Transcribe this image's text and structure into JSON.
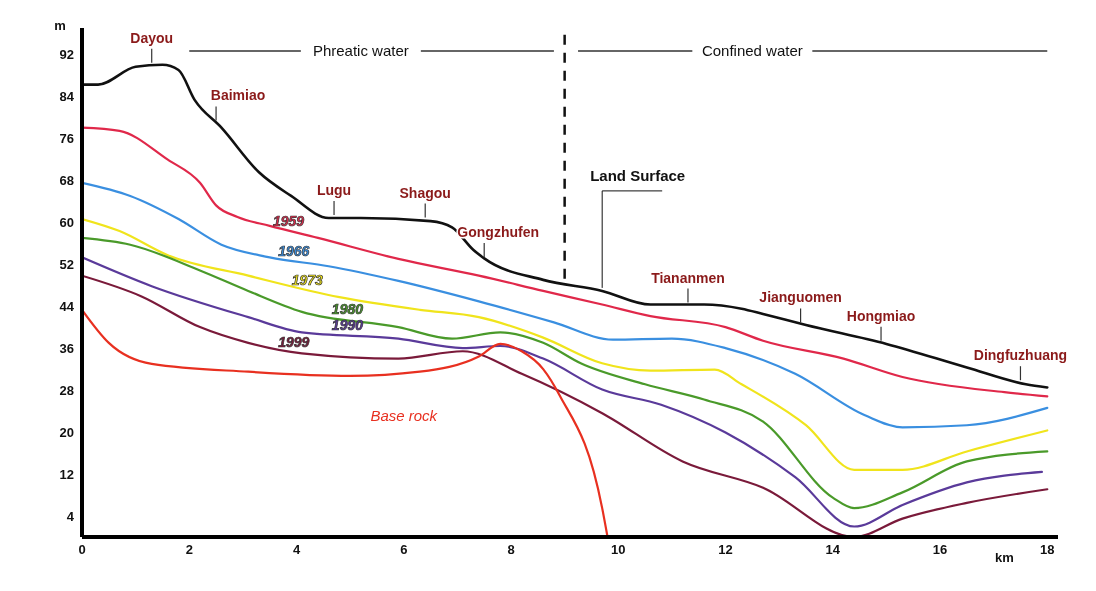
{
  "chart_data": {
    "type": "line",
    "xlabel": "km",
    "ylabel": "m",
    "xlim": [
      0,
      18.2
    ],
    "ylim": [
      0,
      97
    ],
    "xticks": [
      0,
      2,
      4,
      6,
      8,
      10,
      12,
      14,
      16,
      18
    ],
    "yticks": [
      4,
      12,
      20,
      28,
      36,
      44,
      52,
      60,
      68,
      76,
      84,
      92
    ],
    "marker": "none",
    "line_style": "solid",
    "series": [
      {
        "name": "Land Surface",
        "color": "#111111",
        "x": [
          0,
          0.3,
          1,
          1.5,
          1.8,
          2.1,
          2.6,
          3.3,
          3.9,
          4.6,
          5.2,
          6.5,
          6.9,
          7.3,
          7.5,
          8.6,
          9.7,
          10.6,
          11.6,
          12.3,
          12.7,
          13.5,
          15,
          16.5,
          17.6,
          18
        ],
        "values": [
          86.2,
          86.2,
          89.6,
          90,
          89,
          83.3,
          78,
          69.5,
          65,
          60.8,
          60.8,
          60.2,
          59,
          54.7,
          53.1,
          49,
          46.9,
          44.3,
          44.3,
          43.5,
          42.5,
          40.4,
          36.8,
          32.3,
          29.1,
          28.5
        ]
      },
      {
        "name": "1959",
        "color": "#e0284a",
        "x": [
          0,
          0.7,
          1.6,
          2.2,
          2.5,
          2.9,
          3.5,
          4.4,
          5.9,
          7.4,
          8.6,
          9.7,
          10.6,
          12,
          12.7,
          14.2,
          15.3,
          17.2,
          18
        ],
        "values": [
          78,
          77.4,
          71.9,
          67.5,
          63.2,
          61,
          59.3,
          57,
          53,
          49.8,
          46.9,
          44.3,
          42.1,
          40,
          37.4,
          34,
          30.5,
          27.6,
          26.8
        ]
      },
      {
        "name": "1966",
        "color": "#3a8fe0",
        "x": [
          0,
          0.9,
          1.8,
          2.6,
          3.5,
          4.6,
          5.9,
          7.4,
          8.8,
          9.9,
          11,
          12,
          13.3,
          14.6,
          15.3,
          16.5,
          18
        ],
        "values": [
          67.5,
          65,
          60.6,
          55.7,
          53.3,
          51.6,
          48.8,
          44.9,
          40.9,
          37.6,
          37.8,
          36,
          31.1,
          23.2,
          20.9,
          21.3,
          24.6
        ]
      },
      {
        "name": "1973",
        "color": "#f0e41c",
        "x": [
          0,
          0.7,
          1.6,
          3.1,
          4.8,
          6.3,
          7.4,
          8.6,
          9.7,
          10.6,
          11.8,
          12.3,
          13.5,
          14.4,
          15.3,
          16.5,
          18
        ],
        "values": [
          60.6,
          58.3,
          53.7,
          49.8,
          45.7,
          43.3,
          41.9,
          38,
          33.1,
          31.7,
          31.9,
          29.1,
          21.3,
          12.8,
          12.8,
          16.3,
          20.3
        ]
      },
      {
        "name": "1980",
        "color": "#4a9a2a",
        "x": [
          0,
          0.9,
          2.2,
          3.1,
          4.1,
          5.9,
          6.9,
          7.8,
          8.6,
          9.3,
          10.5,
          11.6,
          12.7,
          14,
          14.4,
          15.3,
          16.5,
          18
        ],
        "values": [
          57,
          55.7,
          50.8,
          46.9,
          42.9,
          40,
          37.8,
          39,
          37,
          33.1,
          29.1,
          26.2,
          22,
          7.5,
          5.5,
          8.5,
          14.4,
          16.3
        ]
      },
      {
        "name": "1990",
        "color": "#5a3a9a",
        "x": [
          0,
          1.3,
          3.1,
          4.1,
          5.9,
          7.1,
          7.8,
          8.6,
          9.7,
          10.8,
          12,
          13.3,
          14.4,
          15.3,
          16.5,
          17.9
        ],
        "values": [
          53.3,
          47.8,
          41.9,
          39,
          37.8,
          36,
          36.4,
          34,
          28.1,
          25.2,
          19.9,
          11.4,
          2,
          6.1,
          10.4,
          12.4
        ]
      },
      {
        "name": "1999",
        "color": "#7a1a3a",
        "x": [
          0,
          1.1,
          2.2,
          3.1,
          4.1,
          5.9,
          7.1,
          8.2,
          9.7,
          11.2,
          12.7,
          14.4,
          15.3,
          16.5,
          18
        ],
        "values": [
          49.8,
          45.9,
          40,
          37,
          35,
          34,
          35.4,
          31.1,
          23.6,
          14.4,
          9.4,
          0,
          3.5,
          6.5,
          9.1
        ]
      },
      {
        "name": "Base rock",
        "color": "#e83020",
        "x": [
          0,
          0.5,
          1.3,
          3.1,
          5,
          6.3,
          7.4,
          7.8,
          8.2,
          8.6,
          8.9,
          9.7,
          9.8
        ],
        "values": [
          43.3,
          37,
          33,
          31.5,
          30.7,
          31.5,
          34.4,
          36.8,
          35.4,
          32,
          27.1,
          5.5,
          0
        ]
      }
    ],
    "ref_lines": [
      {
        "axis": "x",
        "value": 9,
        "line_style": "dashed"
      }
    ],
    "annotations": [
      "Phreatic water",
      "Confined water",
      {
        "text": "Dayou",
        "x": 1.3,
        "y": 90
      },
      {
        "text": "Baimiao",
        "x": 2.5,
        "y": 79
      },
      {
        "text": "Lugu",
        "x": 4.7,
        "y": 61
      },
      {
        "text": "Shagou",
        "x": 6.4,
        "y": 60.5
      },
      {
        "text": "Gongzhufen",
        "x": 7.5,
        "y": 53
      },
      {
        "text": "Tiananmen",
        "x": 11.3,
        "y": 44.3
      },
      {
        "text": "Jianguomen",
        "x": 13.4,
        "y": 40.5
      },
      {
        "text": "Hongmiao",
        "x": 14.9,
        "y": 37
      },
      {
        "text": "Dingfuzhuang",
        "x": 17.5,
        "y": 29.5
      }
    ]
  }
}
